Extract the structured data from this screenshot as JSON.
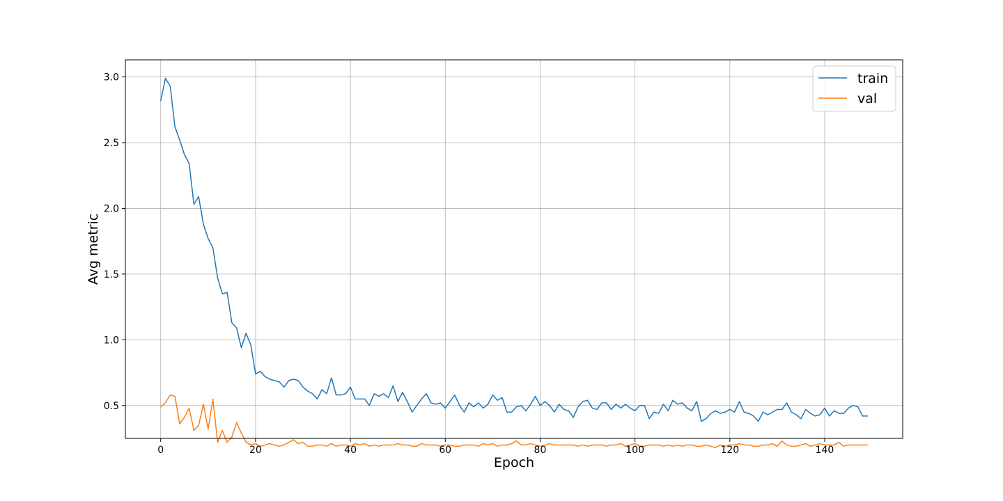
{
  "chart_data": {
    "type": "line",
    "title": "",
    "xlabel": "Epoch",
    "ylabel": "Avg metric",
    "xlim": [
      -7.45,
      156.45
    ],
    "ylim": [
      0.25,
      3.13
    ],
    "xticks": [
      0,
      20,
      40,
      60,
      80,
      100,
      120,
      140
    ],
    "yticks": [
      0.5,
      1.0,
      1.5,
      2.0,
      2.5,
      3.0
    ],
    "ytick_labels": [
      "0.5",
      "1.0",
      "1.5",
      "2.0",
      "2.5",
      "3.0"
    ],
    "grid": true,
    "legend_position": "top-right",
    "series": [
      {
        "name": "train",
        "color": "#1f77b4",
        "values": [
          2.82,
          2.99,
          2.93,
          2.62,
          2.52,
          2.41,
          2.34,
          2.03,
          2.09,
          1.88,
          1.77,
          1.7,
          1.47,
          1.35,
          1.36,
          1.13,
          1.09,
          0.94,
          1.05,
          0.96,
          0.74,
          0.76,
          0.72,
          0.7,
          0.69,
          0.68,
          0.64,
          0.69,
          0.7,
          0.69,
          0.64,
          0.61,
          0.59,
          0.55,
          0.62,
          0.59,
          0.71,
          0.58,
          0.58,
          0.59,
          0.64,
          0.55,
          0.55,
          0.55,
          0.5,
          0.59,
          0.57,
          0.59,
          0.56,
          0.65,
          0.53,
          0.6,
          0.53,
          0.45,
          0.5,
          0.55,
          0.59,
          0.52,
          0.51,
          0.52,
          0.48,
          0.53,
          0.58,
          0.5,
          0.45,
          0.52,
          0.49,
          0.52,
          0.48,
          0.51,
          0.58,
          0.54,
          0.56,
          0.45,
          0.45,
          0.49,
          0.5,
          0.46,
          0.51,
          0.57,
          0.5,
          0.53,
          0.5,
          0.45,
          0.51,
          0.47,
          0.46,
          0.41,
          0.49,
          0.53,
          0.54,
          0.48,
          0.47,
          0.52,
          0.52,
          0.47,
          0.51,
          0.48,
          0.51,
          0.48,
          0.46,
          0.5,
          0.5,
          0.4,
          0.45,
          0.44,
          0.51,
          0.46,
          0.54,
          0.51,
          0.52,
          0.48,
          0.46,
          0.53,
          0.38,
          0.4,
          0.44,
          0.46,
          0.44,
          0.45,
          0.47,
          0.45,
          0.53,
          0.45,
          0.44,
          0.42,
          0.38,
          0.45,
          0.43,
          0.45,
          0.47,
          0.47,
          0.52,
          0.45,
          0.43,
          0.4,
          0.47,
          0.44,
          0.42,
          0.43,
          0.48,
          0.42,
          0.46,
          0.44,
          0.44,
          0.48,
          0.5,
          0.49,
          0.42,
          0.42
        ]
      },
      {
        "name": "val",
        "color": "#ff7f0e",
        "values": [
          0.49,
          0.52,
          0.58,
          0.57,
          0.36,
          0.41,
          0.48,
          0.31,
          0.35,
          0.51,
          0.32,
          0.55,
          0.22,
          0.31,
          0.22,
          0.26,
          0.37,
          0.29,
          0.22,
          0.2,
          0.21,
          0.19,
          0.2,
          0.21,
          0.2,
          0.19,
          0.2,
          0.22,
          0.24,
          0.21,
          0.22,
          0.19,
          0.19,
          0.2,
          0.2,
          0.19,
          0.21,
          0.19,
          0.2,
          0.2,
          0.19,
          0.21,
          0.2,
          0.21,
          0.19,
          0.2,
          0.19,
          0.2,
          0.2,
          0.2,
          0.21,
          0.2,
          0.2,
          0.19,
          0.19,
          0.21,
          0.2,
          0.2,
          0.2,
          0.19,
          0.2,
          0.2,
          0.19,
          0.19,
          0.2,
          0.2,
          0.2,
          0.19,
          0.21,
          0.2,
          0.21,
          0.19,
          0.2,
          0.2,
          0.21,
          0.23,
          0.2,
          0.2,
          0.21,
          0.2,
          0.19,
          0.2,
          0.21,
          0.2,
          0.2,
          0.2,
          0.2,
          0.2,
          0.19,
          0.2,
          0.19,
          0.2,
          0.2,
          0.2,
          0.19,
          0.2,
          0.2,
          0.21,
          0.19,
          0.2,
          0.21,
          0.19,
          0.19,
          0.2,
          0.2,
          0.2,
          0.19,
          0.2,
          0.19,
          0.2,
          0.19,
          0.2,
          0.2,
          0.19,
          0.19,
          0.2,
          0.19,
          0.18,
          0.2,
          0.19,
          0.2,
          0.2,
          0.21,
          0.2,
          0.2,
          0.19,
          0.19,
          0.2,
          0.2,
          0.21,
          0.19,
          0.23,
          0.2,
          0.19,
          0.19,
          0.2,
          0.21,
          0.19,
          0.2,
          0.21,
          0.2,
          0.2,
          0.2,
          0.22,
          0.19,
          0.2,
          0.2,
          0.2,
          0.2,
          0.2
        ]
      }
    ]
  }
}
